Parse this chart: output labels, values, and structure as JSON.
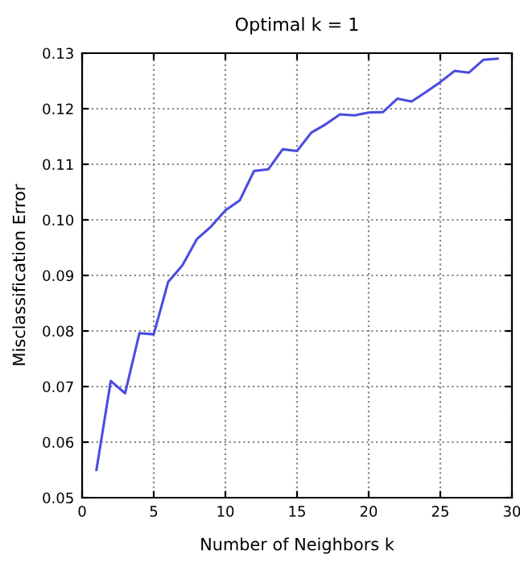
{
  "chart_data": {
    "type": "line",
    "title": "Optimal k = 1",
    "xlabel": "Number of Neighbors k",
    "ylabel": "Misclassification Error",
    "x": [
      1,
      2,
      3,
      4,
      5,
      6,
      7,
      8,
      9,
      10,
      11,
      12,
      13,
      14,
      15,
      16,
      17,
      18,
      19,
      20,
      21,
      22,
      23,
      24,
      25,
      26,
      27,
      28,
      29
    ],
    "series": [
      {
        "color": "#4b4be0",
        "values": [
          0.055,
          0.071,
          0.0688,
          0.0796,
          0.0794,
          0.0888,
          0.0918,
          0.0965,
          0.0988,
          0.1017,
          0.1035,
          0.1088,
          0.1091,
          0.1127,
          0.1124,
          0.1157,
          0.1172,
          0.119,
          0.1188,
          0.1193,
          0.1194,
          0.1218,
          0.1213,
          0.123,
          0.1248,
          0.1268,
          0.1265,
          0.1288,
          0.129
        ]
      }
    ],
    "xlim": [
      0,
      30
    ],
    "xticks": [
      0,
      5,
      10,
      15,
      20,
      25,
      30
    ],
    "ylim": [
      0.05,
      0.13
    ],
    "yticks": [
      {
        "value": 0.05,
        "label": "0.05"
      },
      {
        "value": 0.06,
        "label": "0.06"
      },
      {
        "value": 0.07,
        "label": "0.07"
      },
      {
        "value": 0.08,
        "label": "0.08"
      },
      {
        "value": 0.09,
        "label": "0.09"
      },
      {
        "value": 0.1,
        "label": "0.10"
      },
      {
        "value": 0.11,
        "label": "0.11"
      },
      {
        "value": 0.12,
        "label": "0.12"
      },
      {
        "value": 0.13,
        "label": "0.13"
      }
    ],
    "grid": true,
    "marker": "none",
    "line_style": "solid"
  }
}
